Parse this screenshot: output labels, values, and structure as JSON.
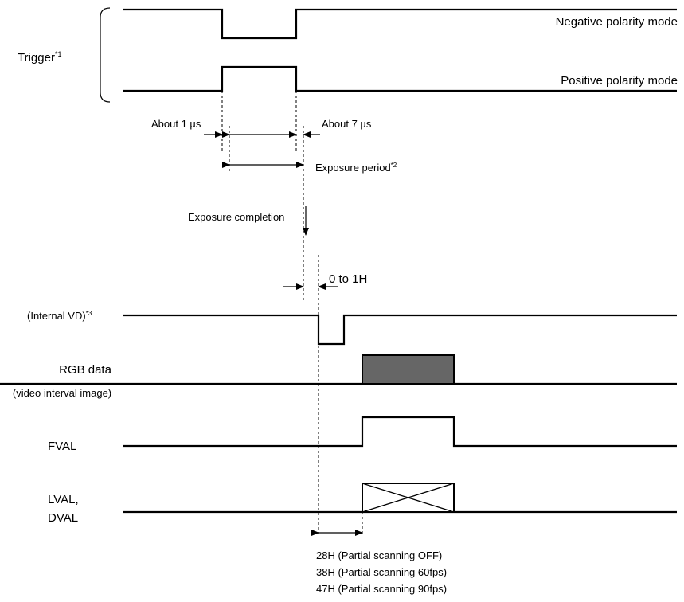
{
  "trigger": {
    "label": "Trigger",
    "note_mark": "*1",
    "negative_mode": "Negative polarity mode",
    "positive_mode": "Positive polarity mode"
  },
  "timing": {
    "about_1us": "About 1 µs",
    "about_7us": "About 7 µs",
    "exposure_period": "Exposure period",
    "exposure_period_mark": "*2",
    "exposure_completion": "Exposure completion",
    "zero_to_1h": "0 to 1H"
  },
  "signals": {
    "internal_vd": "(Internal VD)",
    "internal_vd_mark": "*3",
    "rgb_data": "RGB data",
    "rgb_data_sub": "(video interval image)",
    "fval": "FVAL",
    "lval": "LVAL,",
    "dval": "DVAL"
  },
  "delays": [
    "28H (Partial scanning OFF)",
    "38H (Partial scanning 60fps)",
    "47H (Partial scanning 90fps)"
  ],
  "colors": {
    "line": "#000000",
    "rgb_block_fill": "#666666",
    "background": "#ffffff"
  }
}
